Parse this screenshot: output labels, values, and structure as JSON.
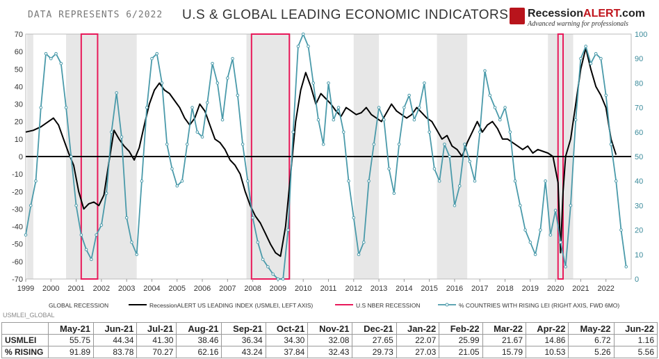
{
  "header": {
    "note": "DATA REPRESENTS  6/2022",
    "title": "U.S & GLOBAL LEADING ECONOMIC INDICATORS",
    "logo_main": "Recession",
    "logo_accent": "ALERT",
    "logo_suffix": ".com",
    "logo_tagline": "Advanced warning for professionals"
  },
  "source_note": "USMLEI_GLOBAL",
  "colors": {
    "usmlei": "#000000",
    "rising": "#4a9aaa",
    "recession_bar": "#e7e7e7",
    "nber": "#e8195a",
    "zero_line": "#000000"
  },
  "chart_data": {
    "type": "line",
    "title": "U.S & GLOBAL LEADING ECONOMIC INDICATORS",
    "x_ticks": [
      "1999",
      "2000",
      "2001",
      "2002",
      "2003",
      "2004",
      "2005",
      "2006",
      "2007",
      "2008",
      "2009",
      "2010",
      "2011",
      "2012",
      "2013",
      "2014",
      "2015",
      "2016",
      "2017",
      "2018",
      "2019",
      "2020",
      "2021",
      "2022"
    ],
    "x_range": [
      1999.0,
      2023.0
    ],
    "left_axis": {
      "range": [
        -70,
        70
      ],
      "ticks": [
        "70",
        "60",
        "50",
        "40",
        "30",
        "20",
        "10",
        "0",
        "-10",
        "-20",
        "-30",
        "-40",
        "-50",
        "-60",
        "-70"
      ]
    },
    "right_axis": {
      "range": [
        0,
        100
      ],
      "ticks": [
        "100",
        "90",
        "80",
        "70",
        "60",
        "50",
        "40",
        "30",
        "20",
        "10",
        "0"
      ]
    },
    "legend": [
      {
        "label": "GLOBAL RECESSION",
        "kind": "area"
      },
      {
        "label": "RecessionALERT US LEADING INDEX (USMLEI, LEFT AXIS)",
        "kind": "line-black"
      },
      {
        "label": "U.S NBER RECESSION",
        "kind": "line-red"
      },
      {
        "label": "% COUNTRIES WITH RISING LEI (RIGHT AXIS, FWD 6MO)",
        "kind": "line-teal"
      }
    ],
    "global_recessions": [
      [
        1999.05,
        1999.3
      ],
      [
        2000.6,
        2003.4
      ],
      [
        2007.75,
        2009.5
      ],
      [
        2012.0,
        2013.0
      ],
      [
        2015.3,
        2016.5
      ],
      [
        2019.7,
        2020.7
      ]
    ],
    "nber_recessions": [
      [
        2001.2,
        2001.85
      ],
      [
        2007.95,
        2009.45
      ],
      [
        2020.1,
        2020.3
      ]
    ],
    "series": [
      {
        "name": "RecessionALERT US LEADING INDEX (USMLEI, LEFT AXIS)",
        "axis": "left",
        "x": [
          1999.0,
          1999.3,
          1999.6,
          1999.9,
          2000.1,
          2000.3,
          2000.5,
          2000.7,
          2000.9,
          2001.1,
          2001.3,
          2001.5,
          2001.7,
          2001.9,
          2002.1,
          2002.3,
          2002.5,
          2002.7,
          2002.9,
          2003.1,
          2003.3,
          2003.5,
          2003.7,
          2003.9,
          2004.1,
          2004.3,
          2004.5,
          2004.7,
          2004.9,
          2005.1,
          2005.3,
          2005.5,
          2005.7,
          2005.9,
          2006.1,
          2006.3,
          2006.5,
          2006.7,
          2006.9,
          2007.1,
          2007.3,
          2007.5,
          2007.7,
          2007.9,
          2008.1,
          2008.3,
          2008.5,
          2008.7,
          2008.9,
          2009.1,
          2009.3,
          2009.5,
          2009.7,
          2009.9,
          2010.1,
          2010.3,
          2010.5,
          2010.7,
          2010.9,
          2011.1,
          2011.3,
          2011.5,
          2011.7,
          2011.9,
          2012.1,
          2012.3,
          2012.5,
          2012.7,
          2012.9,
          2013.1,
          2013.3,
          2013.5,
          2013.7,
          2013.9,
          2014.1,
          2014.3,
          2014.5,
          2014.7,
          2014.9,
          2015.1,
          2015.3,
          2015.5,
          2015.7,
          2015.9,
          2016.1,
          2016.3,
          2016.5,
          2016.7,
          2016.9,
          2017.1,
          2017.3,
          2017.5,
          2017.7,
          2017.9,
          2018.1,
          2018.3,
          2018.5,
          2018.7,
          2018.9,
          2019.1,
          2019.3,
          2019.5,
          2019.7,
          2019.9,
          2020.1,
          2020.2,
          2020.3,
          2020.4,
          2020.6,
          2020.8,
          2021.0,
          2021.2,
          2021.4,
          2021.6,
          2021.8,
          2022.0,
          2022.2,
          2022.4
        ],
        "values": [
          14,
          15,
          17,
          20,
          22,
          18,
          10,
          2,
          -5,
          -20,
          -30,
          -27,
          -26,
          -28,
          -22,
          -3,
          15,
          10,
          6,
          3,
          -2,
          5,
          18,
          30,
          38,
          42,
          38,
          36,
          32,
          28,
          22,
          18,
          22,
          30,
          26,
          18,
          10,
          8,
          4,
          -2,
          -5,
          -10,
          -20,
          -28,
          -34,
          -38,
          -44,
          -50,
          -55,
          -57,
          -40,
          -10,
          20,
          38,
          48,
          40,
          30,
          36,
          33,
          30,
          26,
          23,
          28,
          26,
          24,
          25,
          28,
          24,
          22,
          20,
          25,
          30,
          26,
          24,
          22,
          24,
          28,
          25,
          22,
          20,
          15,
          10,
          12,
          6,
          4,
          0,
          8,
          14,
          20,
          14,
          18,
          20,
          16,
          10,
          10,
          8,
          6,
          4,
          6,
          2,
          4,
          3,
          2,
          0,
          -15,
          -55,
          -20,
          0,
          10,
          30,
          50,
          62,
          50,
          40,
          35,
          28,
          10,
          1
        ]
      },
      {
        "name": "% COUNTRIES WITH RISING LEI (RIGHT AXIS, FWD 6MO)",
        "axis": "right",
        "x": [
          1999.0,
          1999.2,
          1999.4,
          1999.6,
          1999.8,
          2000.0,
          2000.2,
          2000.4,
          2000.6,
          2000.8,
          2001.0,
          2001.2,
          2001.4,
          2001.6,
          2001.8,
          2002.0,
          2002.2,
          2002.4,
          2002.6,
          2002.8,
          2003.0,
          2003.2,
          2003.4,
          2003.6,
          2003.8,
          2004.0,
          2004.2,
          2004.4,
          2004.6,
          2004.8,
          2005.0,
          2005.2,
          2005.4,
          2005.6,
          2005.8,
          2006.0,
          2006.2,
          2006.4,
          2006.6,
          2006.8,
          2007.0,
          2007.2,
          2007.4,
          2007.6,
          2007.8,
          2008.0,
          2008.2,
          2008.4,
          2008.6,
          2008.8,
          2009.0,
          2009.2,
          2009.4,
          2009.6,
          2009.8,
          2010.0,
          2010.2,
          2010.4,
          2010.6,
          2010.8,
          2011.0,
          2011.2,
          2011.4,
          2011.6,
          2011.8,
          2012.0,
          2012.2,
          2012.4,
          2012.6,
          2012.8,
          2013.0,
          2013.2,
          2013.4,
          2013.6,
          2013.8,
          2014.0,
          2014.2,
          2014.4,
          2014.6,
          2014.8,
          2015.0,
          2015.2,
          2015.4,
          2015.6,
          2015.8,
          2016.0,
          2016.2,
          2016.4,
          2016.6,
          2016.8,
          2017.0,
          2017.2,
          2017.4,
          2017.6,
          2017.8,
          2018.0,
          2018.2,
          2018.4,
          2018.6,
          2018.8,
          2019.0,
          2019.2,
          2019.4,
          2019.6,
          2019.8,
          2020.0,
          2020.2,
          2020.4,
          2020.6,
          2020.8,
          2021.0,
          2021.2,
          2021.4,
          2021.6,
          2021.8,
          2022.0,
          2022.2,
          2022.4,
          2022.6,
          2022.8
        ],
        "values": [
          18,
          30,
          40,
          70,
          92,
          90,
          92,
          88,
          70,
          50,
          30,
          18,
          12,
          8,
          18,
          22,
          35,
          60,
          76,
          58,
          25,
          15,
          10,
          40,
          70,
          90,
          92,
          80,
          55,
          45,
          38,
          40,
          55,
          70,
          60,
          58,
          72,
          88,
          80,
          65,
          82,
          90,
          75,
          55,
          40,
          25,
          15,
          8,
          5,
          2,
          0,
          0,
          20,
          60,
          95,
          100,
          95,
          80,
          65,
          55,
          80,
          65,
          70,
          60,
          40,
          25,
          10,
          15,
          40,
          55,
          70,
          65,
          45,
          35,
          55,
          70,
          75,
          65,
          70,
          80,
          60,
          45,
          40,
          55,
          50,
          30,
          38,
          55,
          48,
          40,
          60,
          85,
          75,
          70,
          65,
          70,
          60,
          40,
          30,
          20,
          15,
          10,
          20,
          40,
          18,
          28,
          15,
          5,
          30,
          65,
          90,
          95,
          88,
          92,
          90,
          75,
          55,
          40,
          20,
          5
        ]
      }
    ],
    "table": {
      "columns": [
        "May-21",
        "Jun-21",
        "Jul-21",
        "Aug-21",
        "Sep-21",
        "Oct-21",
        "Nov-21",
        "Dec-21",
        "Jan-22",
        "Feb-22",
        "Mar-22",
        "Apr-22",
        "May-22",
        "Jun-22"
      ],
      "rows": [
        {
          "label": "USMLEI",
          "values": [
            "55.75",
            "44.34",
            "41.30",
            "38.46",
            "36.34",
            "34.30",
            "32.08",
            "27.65",
            "22.07",
            "25.99",
            "21.67",
            "14.86",
            "6.72",
            "1.16"
          ]
        },
        {
          "label": "% RISING",
          "values": [
            "91.89",
            "83.78",
            "70.27",
            "62.16",
            "43.24",
            "37.84",
            "32.43",
            "29.73",
            "27.03",
            "21.05",
            "15.79",
            "10.53",
            "5.26",
            "5.56"
          ]
        }
      ]
    }
  }
}
